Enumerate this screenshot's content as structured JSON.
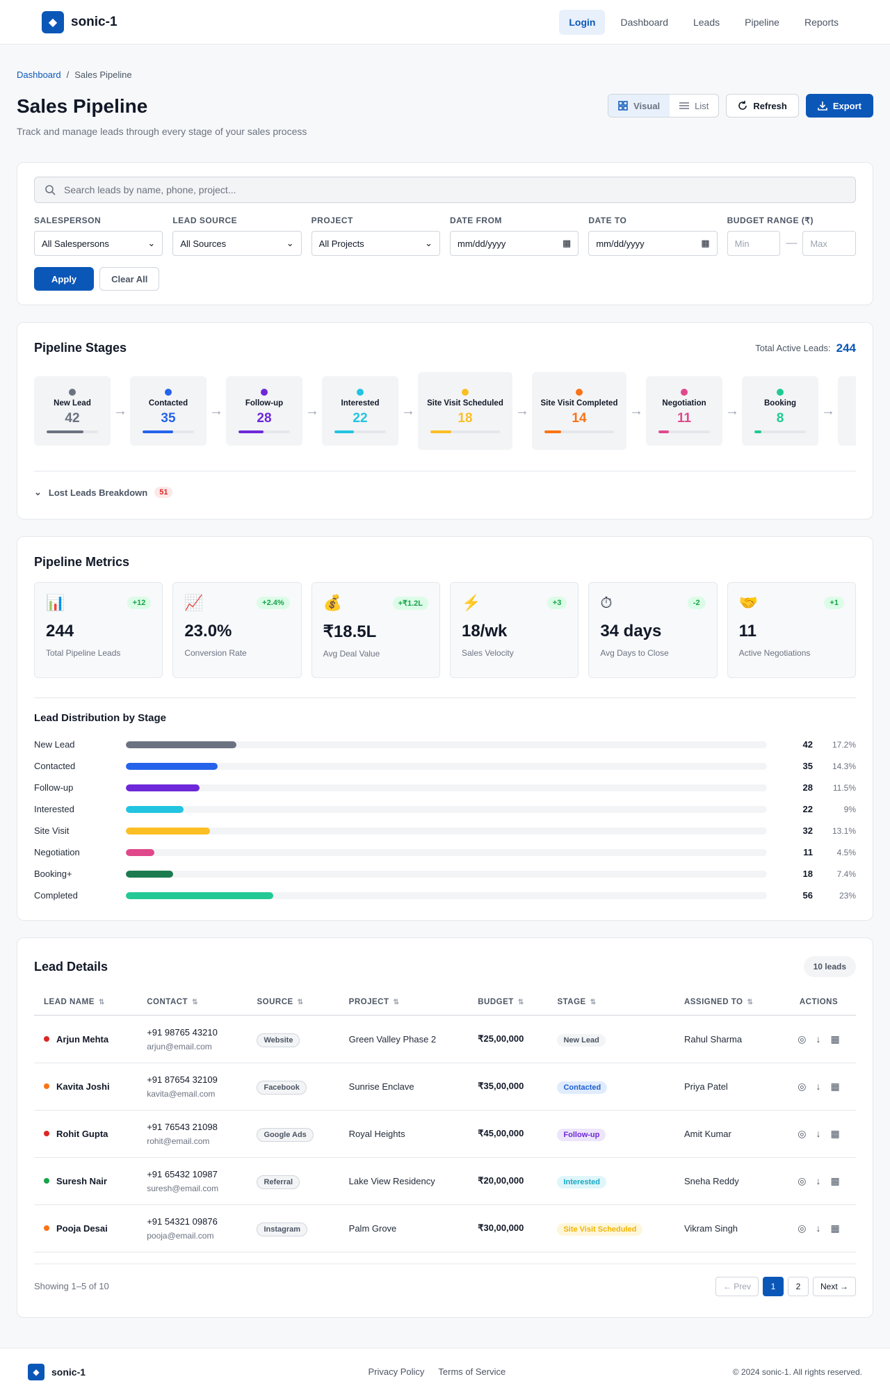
{
  "header": {
    "brand": "sonic-1",
    "nav": [
      "Login",
      "Dashboard",
      "Leads",
      "Pipeline",
      "Reports"
    ]
  },
  "breadcrumb": {
    "root": "Dashboard",
    "sep": "/",
    "current": "Sales Pipeline"
  },
  "page": {
    "title": "Sales Pipeline",
    "subtitle": "Track and manage leads through every stage of your sales process"
  },
  "view_toggle": {
    "visual": "Visual",
    "list": "List"
  },
  "buttons": {
    "refresh": "Refresh",
    "export": "Export",
    "apply": "Apply",
    "clear": "Clear All"
  },
  "search": {
    "placeholder": "Search leads by name, phone, project..."
  },
  "filters": [
    {
      "label": "Salesperson",
      "value": "All Salespersons"
    },
    {
      "label": "Lead Source",
      "value": "All Sources"
    },
    {
      "label": "Project",
      "value": "All Projects"
    },
    {
      "label": "Date From",
      "value": "mm/dd/yyyy"
    },
    {
      "label": "Date To",
      "value": "mm/dd/yyyy"
    }
  ],
  "budget": {
    "label": "Budget Range (₹)",
    "min": "Min",
    "sep": "—",
    "max": "Max"
  },
  "stages_card": {
    "title": "Pipeline Stages",
    "total_label": "Total Active Leads:",
    "total": "244",
    "stages": [
      {
        "name": "New Lead",
        "count": "42",
        "color": "#6b7280",
        "fill": 0.72
      },
      {
        "name": "Contacted",
        "count": "35",
        "color": "#2563eb",
        "fill": 0.6
      },
      {
        "name": "Follow-up",
        "count": "28",
        "color": "#6d28d9",
        "fill": 0.48
      },
      {
        "name": "Interested",
        "count": "22",
        "color": "#22c4e0",
        "fill": 0.38
      },
      {
        "name": "Site Visit Scheduled",
        "count": "18",
        "color": "#fbbf24",
        "fill": 0.3
      },
      {
        "name": "Site Visit Completed",
        "count": "14",
        "color": "#f97316",
        "fill": 0.24
      },
      {
        "name": "Negotiation",
        "count": "11",
        "color": "#e0488b",
        "fill": 0.2
      },
      {
        "name": "Booking",
        "count": "8",
        "color": "#22c995",
        "fill": 0.14
      }
    ],
    "lost_label": "Lost Leads Breakdown",
    "lost_count": "51"
  },
  "metrics_card": {
    "title": "Pipeline Metrics",
    "metrics": [
      {
        "icon": "📊",
        "change": "+12",
        "value": "244",
        "label": "Total Pipeline Leads"
      },
      {
        "icon": "📈",
        "change": "+2.4%",
        "value": "23.0%",
        "label": "Conversion Rate"
      },
      {
        "icon": "💰",
        "change": "+₹1.2L",
        "value": "₹18.5L",
        "label": "Avg Deal Value"
      },
      {
        "icon": "⚡",
        "change": "+3",
        "value": "18/wk",
        "label": "Sales Velocity"
      },
      {
        "icon": "⏱",
        "change": "-2",
        "value": "34 days",
        "label": "Avg Days to Close"
      },
      {
        "icon": "🤝",
        "change": "+1",
        "value": "11",
        "label": "Active Negotiations"
      }
    ],
    "dist_title": "Lead Distribution by Stage",
    "distribution": [
      {
        "name": "New Lead",
        "count": "42",
        "pct": "17.2%",
        "fill": 0.172,
        "color": "#6b7280"
      },
      {
        "name": "Contacted",
        "count": "35",
        "pct": "14.3%",
        "fill": 0.143,
        "color": "#2563eb"
      },
      {
        "name": "Follow-up",
        "count": "28",
        "pct": "11.5%",
        "fill": 0.115,
        "color": "#6d28d9"
      },
      {
        "name": "Interested",
        "count": "22",
        "pct": "9%",
        "fill": 0.09,
        "color": "#22c4e0"
      },
      {
        "name": "Site Visit",
        "count": "32",
        "pct": "13.1%",
        "fill": 0.131,
        "color": "#fbbf24"
      },
      {
        "name": "Negotiation",
        "count": "11",
        "pct": "4.5%",
        "fill": 0.045,
        "color": "#e0488b"
      },
      {
        "name": "Booking+",
        "count": "18",
        "pct": "7.4%",
        "fill": 0.074,
        "color": "#1c7c4f"
      },
      {
        "name": "Completed",
        "count": "56",
        "pct": "23%",
        "fill": 0.23,
        "color": "#22c995"
      }
    ]
  },
  "leads_card": {
    "title": "Lead Details",
    "count_chip": "10 leads",
    "columns": [
      "Lead Name",
      "Contact",
      "Source",
      "Project",
      "Budget",
      "Stage",
      "Assigned To",
      "Actions"
    ],
    "rows": [
      {
        "dot": "#dc2626",
        "name": "Arjun Mehta",
        "phone": "+91 98765 43210",
        "email": "arjun@email.com",
        "source": "Website",
        "project": "Green Valley Phase 2",
        "budget": "₹25,00,000",
        "stage": "New Lead",
        "stage_bg": "#f3f4f6",
        "stage_fg": "#4b5563",
        "assigned": "Rahul Sharma"
      },
      {
        "dot": "#f97316",
        "name": "Kavita Joshi",
        "phone": "+91 87654 32109",
        "email": "kavita@email.com",
        "source": "Facebook",
        "project": "Sunrise Enclave",
        "budget": "₹35,00,000",
        "stage": "Contacted",
        "stage_bg": "#e0ecfd",
        "stage_fg": "#1d5fd1",
        "assigned": "Priya Patel"
      },
      {
        "dot": "#dc2626",
        "name": "Rohit Gupta",
        "phone": "+91 76543 21098",
        "email": "rohit@email.com",
        "source": "Google Ads",
        "project": "Royal Heights",
        "budget": "₹45,00,000",
        "stage": "Follow-up",
        "stage_bg": "#ede5fb",
        "stage_fg": "#6d28d9",
        "assigned": "Amit Kumar"
      },
      {
        "dot": "#16a34a",
        "name": "Suresh Nair",
        "phone": "+91 65432 10987",
        "email": "suresh@email.com",
        "source": "Referral",
        "project": "Lake View Residency",
        "budget": "₹20,00,000",
        "stage": "Interested",
        "stage_bg": "#dff6fb",
        "stage_fg": "#16a8c4",
        "assigned": "Sneha Reddy"
      },
      {
        "dot": "#f97316",
        "name": "Pooja Desai",
        "phone": "+91 54321 09876",
        "email": "pooja@email.com",
        "source": "Instagram",
        "project": "Palm Grove",
        "budget": "₹30,00,000",
        "stage": "Site Visit Scheduled",
        "stage_bg": "#fef6db",
        "stage_fg": "#f0b400",
        "assigned": "Vikram Singh"
      }
    ],
    "showing": "Showing 1–5 of 10",
    "pager": {
      "prev": "← Prev",
      "p1": "1",
      "p2": "2",
      "next": "Next →"
    }
  },
  "footer": {
    "brand": "sonic-1",
    "links": [
      "Privacy Policy",
      "Terms of Service"
    ],
    "copy": "© 2024 sonic-1. All rights reserved."
  }
}
